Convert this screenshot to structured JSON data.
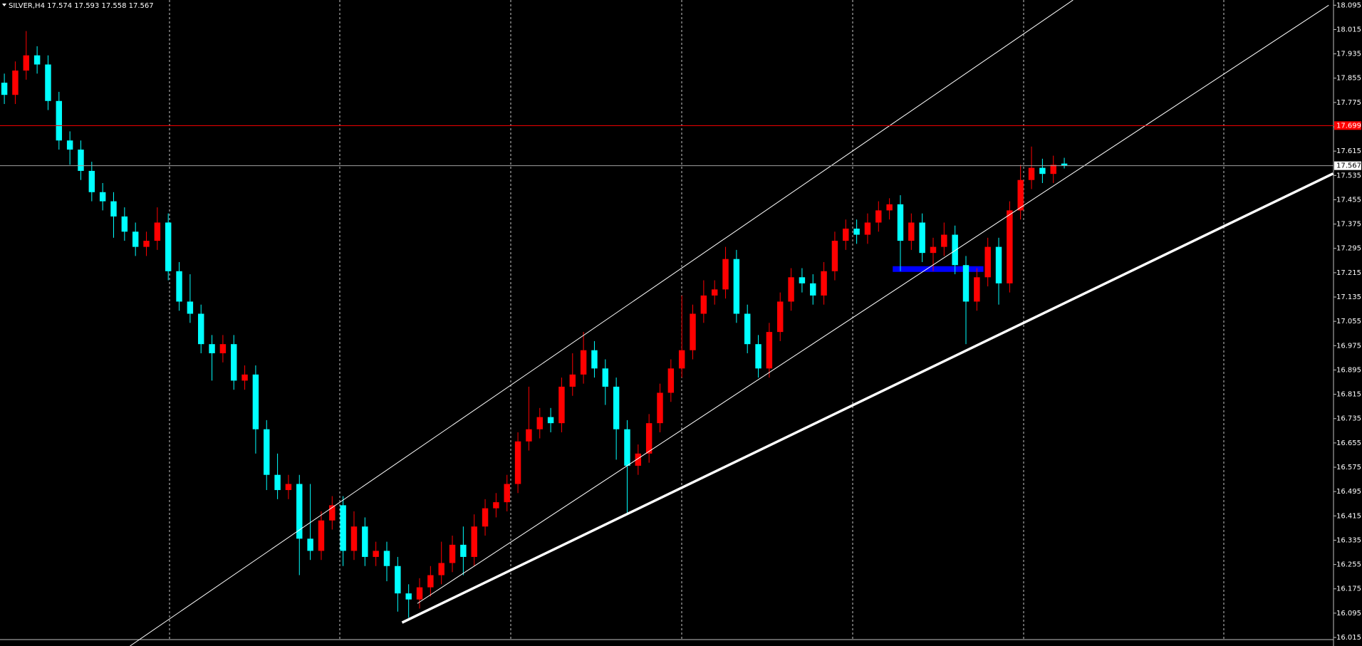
{
  "chart_data": {
    "type": "candlestick",
    "title": "SILVER,H4  17.574 17.593 17.558 17.567",
    "up_color": "#ff0000",
    "down_color": "#00ffff",
    "ylim": [
      16.015,
      18.095
    ],
    "yticks": [
      16.015,
      16.095,
      16.175,
      16.255,
      16.335,
      16.415,
      16.495,
      16.575,
      16.655,
      16.735,
      16.815,
      16.895,
      16.975,
      17.055,
      17.135,
      17.215,
      17.295,
      17.375,
      17.455,
      17.535,
      17.615,
      17.695,
      17.775,
      17.855,
      17.935,
      18.015,
      18.095
    ],
    "candles": [
      [
        17.84,
        17.87,
        17.77,
        17.8
      ],
      [
        17.8,
        17.91,
        17.77,
        17.88
      ],
      [
        17.88,
        18.01,
        17.85,
        17.93
      ],
      [
        17.93,
        17.96,
        17.87,
        17.9
      ],
      [
        17.9,
        17.93,
        17.75,
        17.78
      ],
      [
        17.78,
        17.81,
        17.62,
        17.65
      ],
      [
        17.65,
        17.68,
        17.57,
        17.62
      ],
      [
        17.62,
        17.65,
        17.52,
        17.55
      ],
      [
        17.55,
        17.58,
        17.45,
        17.48
      ],
      [
        17.48,
        17.51,
        17.42,
        17.45
      ],
      [
        17.45,
        17.48,
        17.33,
        17.4
      ],
      [
        17.4,
        17.43,
        17.32,
        17.35
      ],
      [
        17.35,
        17.38,
        17.27,
        17.3
      ],
      [
        17.3,
        17.35,
        17.27,
        17.32
      ],
      [
        17.32,
        17.43,
        17.29,
        17.38
      ],
      [
        17.38,
        17.41,
        17.19,
        17.22
      ],
      [
        17.22,
        17.25,
        17.09,
        17.12
      ],
      [
        17.12,
        17.21,
        17.05,
        17.08
      ],
      [
        17.08,
        17.11,
        16.95,
        16.98
      ],
      [
        16.98,
        17.01,
        16.86,
        16.95
      ],
      [
        16.95,
        17.01,
        16.92,
        16.98
      ],
      [
        16.98,
        17.01,
        16.83,
        16.86
      ],
      [
        16.86,
        16.91,
        16.83,
        16.88
      ],
      [
        16.88,
        16.91,
        16.62,
        16.7
      ],
      [
        16.7,
        16.73,
        16.5,
        16.55
      ],
      [
        16.55,
        16.62,
        16.47,
        16.5
      ],
      [
        16.5,
        16.55,
        16.47,
        16.52
      ],
      [
        16.52,
        16.55,
        16.22,
        16.34
      ],
      [
        16.34,
        16.52,
        16.27,
        16.3
      ],
      [
        16.3,
        16.43,
        16.27,
        16.4
      ],
      [
        16.4,
        16.48,
        16.37,
        16.45
      ],
      [
        16.45,
        16.48,
        16.25,
        16.3
      ],
      [
        16.3,
        16.43,
        16.27,
        16.38
      ],
      [
        16.38,
        16.41,
        16.25,
        16.28
      ],
      [
        16.28,
        16.33,
        16.25,
        16.3
      ],
      [
        16.3,
        16.33,
        16.2,
        16.25
      ],
      [
        16.25,
        16.28,
        16.1,
        16.16
      ],
      [
        16.16,
        16.19,
        16.08,
        16.14
      ],
      [
        16.14,
        16.21,
        16.11,
        16.18
      ],
      [
        16.18,
        16.25,
        16.15,
        16.22
      ],
      [
        16.22,
        16.33,
        16.19,
        16.26
      ],
      [
        16.26,
        16.35,
        16.23,
        16.32
      ],
      [
        16.32,
        16.38,
        16.22,
        16.28
      ],
      [
        16.28,
        16.42,
        16.25,
        16.38
      ],
      [
        16.38,
        16.47,
        16.35,
        16.44
      ],
      [
        16.44,
        16.49,
        16.41,
        16.46
      ],
      [
        16.46,
        16.55,
        16.43,
        16.52
      ],
      [
        16.52,
        16.69,
        16.49,
        16.66
      ],
      [
        16.66,
        16.84,
        16.63,
        16.7
      ],
      [
        16.7,
        16.77,
        16.67,
        16.74
      ],
      [
        16.74,
        16.77,
        16.69,
        16.72
      ],
      [
        16.72,
        16.87,
        16.69,
        16.84
      ],
      [
        16.84,
        16.95,
        16.81,
        16.88
      ],
      [
        16.88,
        17.02,
        16.85,
        16.96
      ],
      [
        16.96,
        16.99,
        16.87,
        16.9
      ],
      [
        16.9,
        16.93,
        16.78,
        16.84
      ],
      [
        16.84,
        16.87,
        16.6,
        16.7
      ],
      [
        16.7,
        16.73,
        16.42,
        16.58
      ],
      [
        16.58,
        16.65,
        16.55,
        16.62
      ],
      [
        16.62,
        16.75,
        16.59,
        16.72
      ],
      [
        16.72,
        16.85,
        16.69,
        16.82
      ],
      [
        16.82,
        16.93,
        16.79,
        16.9
      ],
      [
        16.9,
        17.14,
        16.87,
        16.96
      ],
      [
        16.96,
        17.11,
        16.93,
        17.08
      ],
      [
        17.08,
        17.19,
        17.05,
        17.14
      ],
      [
        17.14,
        17.19,
        17.11,
        17.16
      ],
      [
        17.16,
        17.3,
        17.13,
        17.26
      ],
      [
        17.26,
        17.29,
        17.05,
        17.08
      ],
      [
        17.08,
        17.11,
        16.95,
        16.98
      ],
      [
        16.98,
        17.01,
        16.87,
        16.9
      ],
      [
        16.9,
        17.05,
        16.87,
        17.02
      ],
      [
        17.02,
        17.15,
        16.99,
        17.12
      ],
      [
        17.12,
        17.23,
        17.09,
        17.2
      ],
      [
        17.2,
        17.23,
        17.15,
        17.18
      ],
      [
        17.18,
        17.21,
        17.11,
        17.14
      ],
      [
        17.14,
        17.25,
        17.11,
        17.22
      ],
      [
        17.22,
        17.35,
        17.19,
        17.32
      ],
      [
        17.32,
        17.39,
        17.29,
        17.36
      ],
      [
        17.36,
        17.39,
        17.31,
        17.34
      ],
      [
        17.34,
        17.41,
        17.31,
        17.38
      ],
      [
        17.38,
        17.45,
        17.35,
        17.42
      ],
      [
        17.42,
        17.46,
        17.39,
        17.44
      ],
      [
        17.44,
        17.47,
        17.22,
        17.32
      ],
      [
        17.32,
        17.41,
        17.29,
        17.38
      ],
      [
        17.38,
        17.41,
        17.25,
        17.28
      ],
      [
        17.28,
        17.33,
        17.22,
        17.3
      ],
      [
        17.3,
        17.38,
        17.27,
        17.34
      ],
      [
        17.34,
        17.37,
        17.21,
        17.24
      ],
      [
        17.24,
        17.27,
        16.98,
        17.12
      ],
      [
        17.12,
        17.23,
        17.09,
        17.2
      ],
      [
        17.2,
        17.33,
        17.17,
        17.3
      ],
      [
        17.3,
        17.33,
        17.11,
        17.18
      ],
      [
        17.18,
        17.45,
        17.15,
        17.42
      ],
      [
        17.42,
        17.57,
        17.39,
        17.52
      ],
      [
        17.52,
        17.63,
        17.49,
        17.56
      ],
      [
        17.56,
        17.59,
        17.51,
        17.54
      ],
      [
        17.54,
        17.6,
        17.51,
        17.57
      ],
      [
        17.574,
        17.593,
        17.558,
        17.567
      ]
    ],
    "hlines": [
      {
        "value": 17.699,
        "color": "#ff0000"
      },
      {
        "value": 17.567,
        "color": "#a0a0a0"
      }
    ],
    "trendlines": [
      {
        "x": [
          36.4,
          121.6
        ],
        "y": [
          16.064,
          17.541
        ],
        "color": "#ffffff"
      },
      {
        "x": [
          37.8,
          121.2
        ],
        "y": [
          16.127,
          18.095
        ],
        "color": "#ffffff"
      },
      {
        "x": [
          11.5,
          97.8
        ],
        "y": [
          15.987,
          18.112
        ],
        "color": "#ffffff"
      }
    ],
    "zones": [
      {
        "x": [
          81.3,
          89.6
        ],
        "y": 17.227,
        "color": "#0000ff"
      }
    ]
  }
}
